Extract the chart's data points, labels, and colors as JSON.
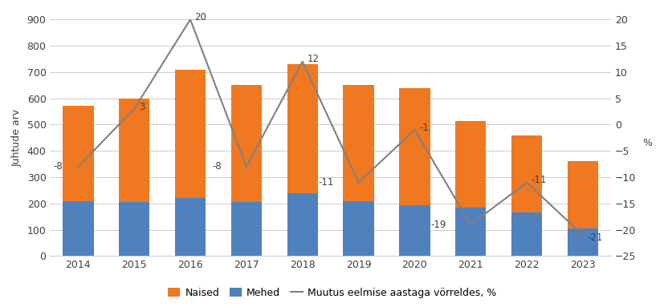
{
  "years": [
    2014,
    2015,
    2016,
    2017,
    2018,
    2019,
    2020,
    2021,
    2022,
    2023
  ],
  "mehed": [
    210,
    205,
    220,
    205,
    240,
    210,
    195,
    185,
    165,
    105
  ],
  "naised": [
    362,
    393,
    490,
    445,
    490,
    440,
    445,
    330,
    295,
    257
  ],
  "change": [
    -8,
    3,
    20,
    -8,
    12,
    -11,
    -1,
    -19,
    -11,
    -21
  ],
  "color_naised": "#F07820",
  "color_mehed": "#4F81BD",
  "color_line": "#808080",
  "ylabel_left": "Juhtude arv",
  "ylabel_right": "%",
  "ylim_left": [
    0,
    900
  ],
  "ylim_right": [
    -25,
    20
  ],
  "yticks_left": [
    0,
    100,
    200,
    300,
    400,
    500,
    600,
    700,
    800,
    900
  ],
  "yticks_right": [
    -25,
    -20,
    -15,
    -10,
    -5,
    0,
    5,
    10,
    15,
    20
  ],
  "legend_naised": "Naised",
  "legend_mehed": "Mehed",
  "legend_line": "Muutus eelmise aastaga vörreldes, %",
  "background_color": "#ffffff",
  "grid_color": "#cccccc",
  "bar_width": 0.55,
  "figwidth": 8.27,
  "figheight": 3.83
}
